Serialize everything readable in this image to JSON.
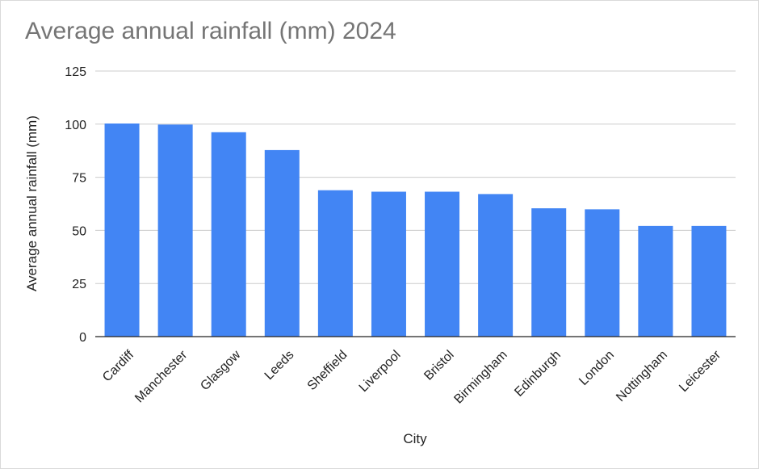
{
  "chart_data": {
    "type": "bar",
    "title": "Average annual rainfall (mm) 2024",
    "xlabel": "City",
    "ylabel": "Average annual rainfall (mm)",
    "ylim": [
      0,
      125
    ],
    "yticks": [
      0,
      25,
      50,
      75,
      100,
      125
    ],
    "grid": true,
    "legend": "none",
    "bar_color": "#4285f4",
    "categories": [
      "Cardiff",
      "Manchester",
      "Glasgow",
      "Leeds",
      "Sheffield",
      "Liverpool",
      "Bristol",
      "Birmingham",
      "Edinburgh",
      "London",
      "Nottingham",
      "Leicester"
    ],
    "values": [
      100.3,
      99.8,
      96.2,
      87.8,
      68.9,
      68.2,
      68.2,
      67.1,
      60.4,
      59.9,
      52.1,
      52.1
    ]
  }
}
